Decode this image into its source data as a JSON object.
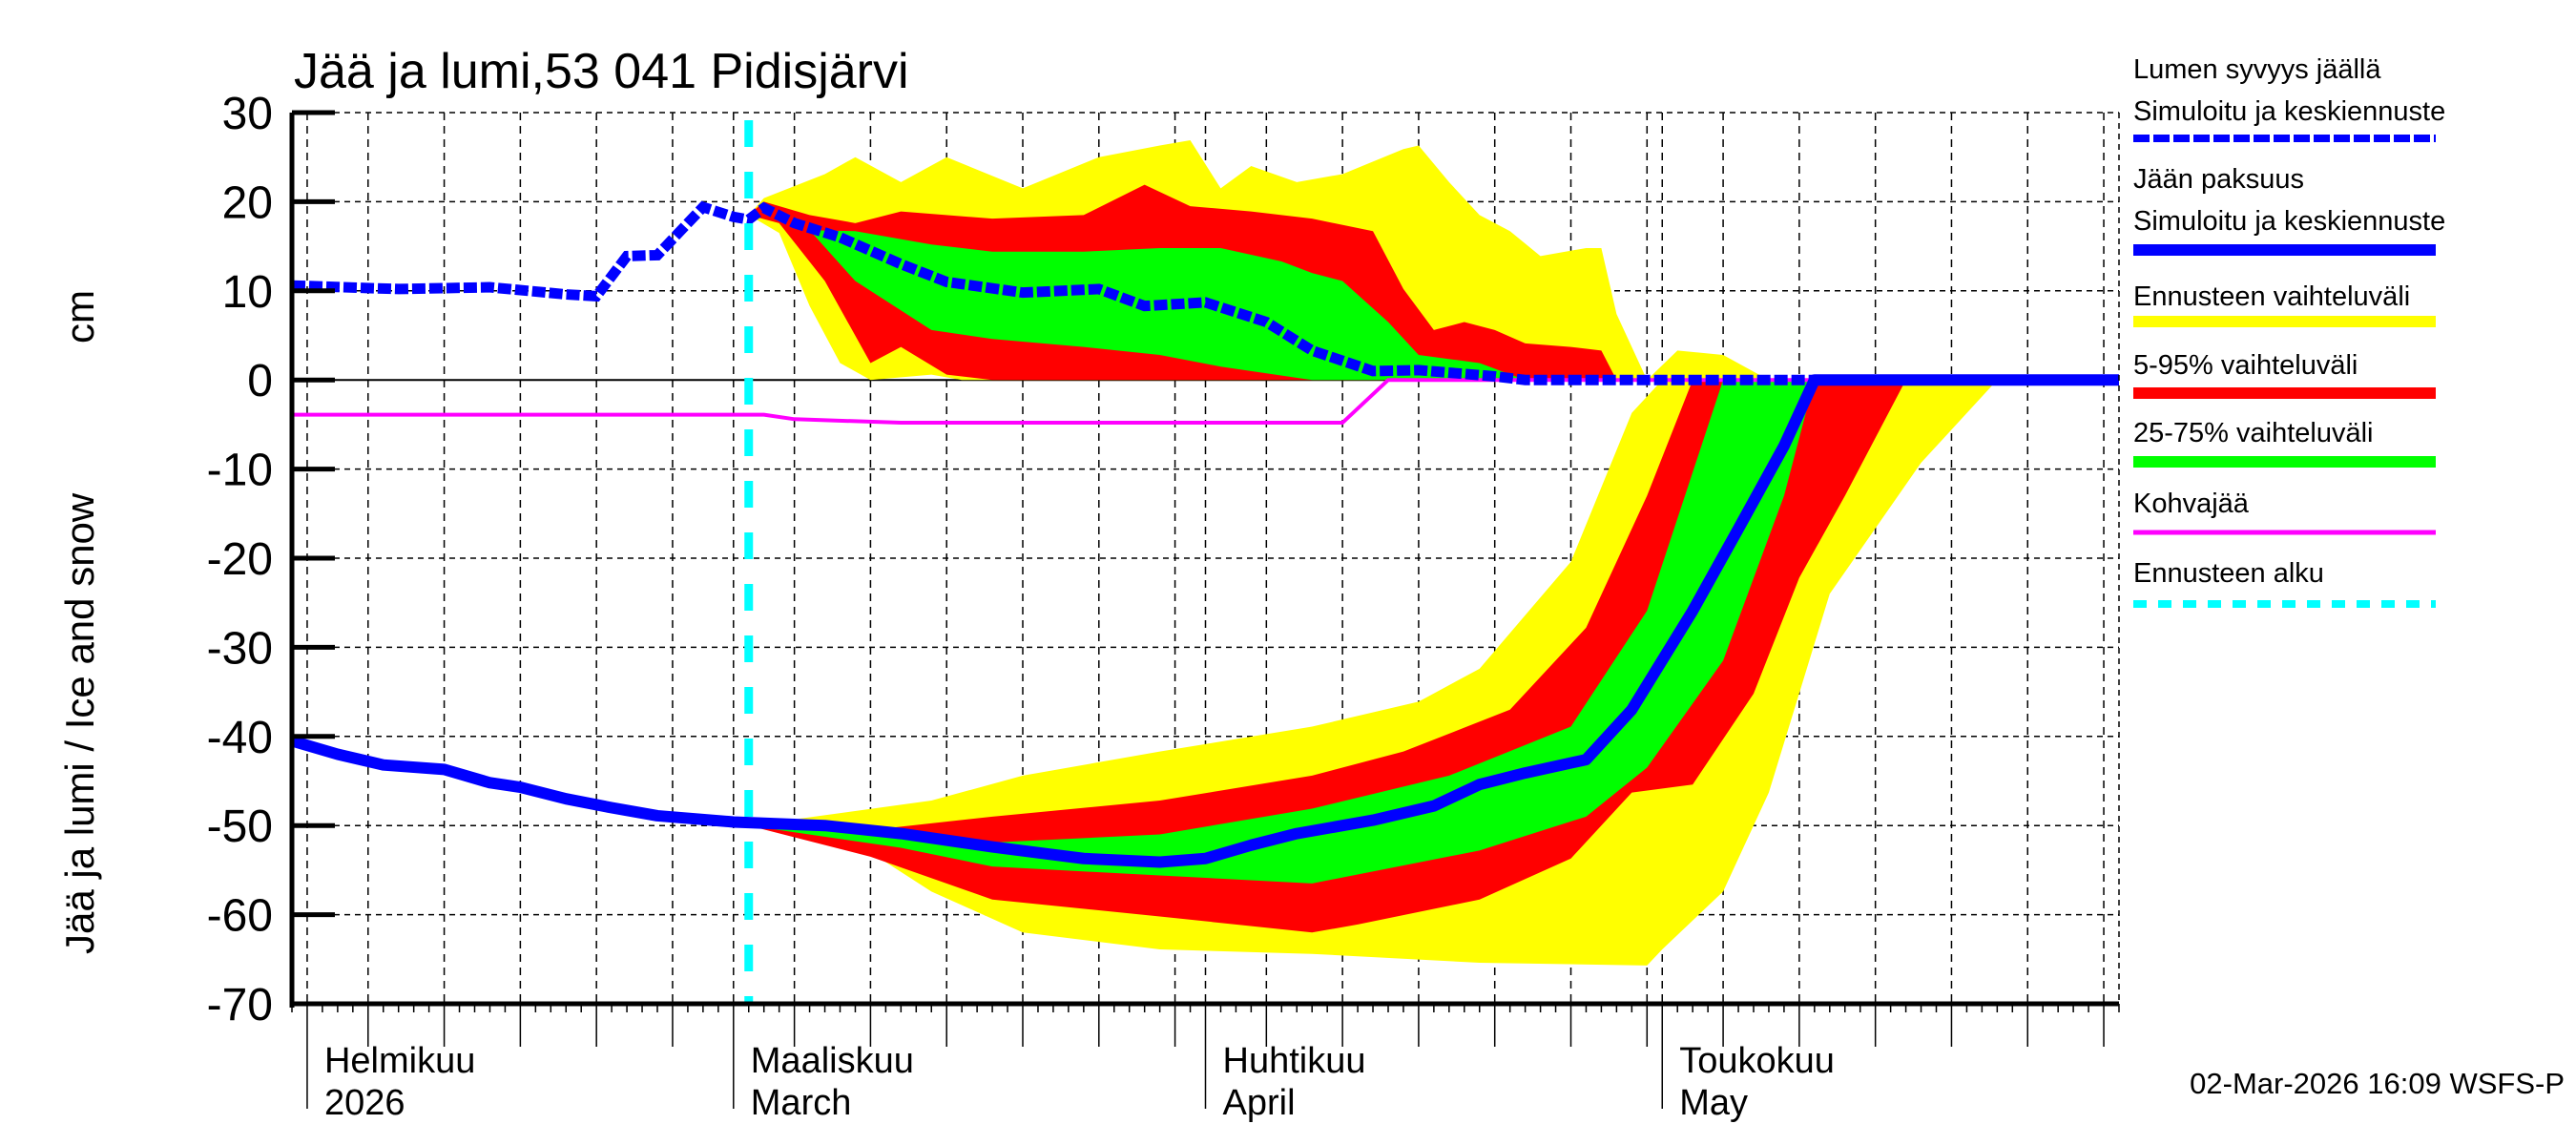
{
  "chart_data": {
    "type": "area",
    "title": "Jää ja lumi,53 041 Pidisjärvi",
    "ylabel": "Jää ja lumi / Ice and snow",
    "yunit": "cm",
    "ylim": [
      -70,
      30
    ],
    "yticks": [
      30,
      20,
      10,
      0,
      -10,
      -20,
      -30,
      -40,
      -50,
      -60,
      -70
    ],
    "xlim": [
      "2026-01-31",
      "2026-05-31"
    ],
    "grid": true,
    "legend_position": "right",
    "month_labels": [
      {
        "date": "2026-02-01",
        "line1": "Helmikuu",
        "line2": "2026"
      },
      {
        "date": "2026-03-01",
        "line1": "Maaliskuu",
        "line2": "March"
      },
      {
        "date": "2026-04-01",
        "line1": "Huhtikuu",
        "line2": "April"
      },
      {
        "date": "2026-05-01",
        "line1": "Toukokuu",
        "line2": "May"
      }
    ],
    "forecast_start": "2026-03-02",
    "footer": "02-Mar-2026 16:09 WSFS-P",
    "colors": {
      "snow": "#0000ff",
      "ice": "#0000ff",
      "range": "#ffff00",
      "p5_95": "#ff0000",
      "p25_75": "#00ff00",
      "slush": "#ff00ff",
      "forecast_start": "#00ffff"
    },
    "legend": [
      {
        "key": "snow",
        "line1": "Lumen syvyys jäällä",
        "line2": "Simuloitu ja keskiennuste",
        "color": "#0000ff",
        "style": "dotted"
      },
      {
        "key": "ice",
        "line1": "Jään paksuus",
        "line2": "Simuloitu ja keskiennuste",
        "color": "#0000ff",
        "style": "solid"
      },
      {
        "key": "range",
        "line1": "Ennusteen vaihteluväli",
        "color": "#ffff00",
        "style": "band"
      },
      {
        "key": "p5_95",
        "line1": "5-95% vaihteluväli",
        "color": "#ff0000",
        "style": "band"
      },
      {
        "key": "p25_75",
        "line1": "25-75% vaihteluväli",
        "color": "#00ff00",
        "style": "band"
      },
      {
        "key": "slush",
        "line1": "Kohvajää",
        "color": "#ff00ff",
        "style": "thin"
      },
      {
        "key": "forecast_start",
        "line1": "Ennusteen alku",
        "color": "#00ffff",
        "style": "dashed"
      }
    ],
    "snow_bands": {
      "range": {
        "upper": [
          [
            "2026-03-02",
            18.5
          ],
          [
            "2026-03-03",
            20.4
          ],
          [
            "2026-03-07",
            23.1
          ],
          [
            "2026-03-09",
            25
          ],
          [
            "2026-03-12",
            22.2
          ],
          [
            "2026-03-15",
            25
          ],
          [
            "2026-03-20",
            21.5
          ],
          [
            "2026-03-25",
            25
          ],
          [
            "2026-03-29",
            26.3
          ],
          [
            "2026-03-31",
            26.9
          ],
          [
            "2026-04-02",
            21.5
          ],
          [
            "2026-04-04",
            24
          ],
          [
            "2026-04-07",
            22.2
          ],
          [
            "2026-04-10",
            23.1
          ],
          [
            "2026-04-14",
            25.9
          ],
          [
            "2026-04-15",
            26.3
          ],
          [
            "2026-04-17",
            22.2
          ],
          [
            "2026-04-19",
            18.5
          ],
          [
            "2026-04-21",
            16.7
          ],
          [
            "2026-04-23",
            13.9
          ],
          [
            "2026-04-26",
            14.8
          ],
          [
            "2026-04-27",
            14.8
          ],
          [
            "2026-04-28",
            7.4
          ],
          [
            "2026-04-30",
            0
          ],
          [
            "2026-05-02",
            3.3
          ],
          [
            "2026-05-05",
            2.8
          ],
          [
            "2026-05-08",
            0
          ]
        ],
        "lower": [
          [
            "2026-03-02",
            18.5
          ],
          [
            "2026-03-04",
            16.5
          ],
          [
            "2026-03-06",
            8.3
          ],
          [
            "2026-03-08",
            1.9
          ],
          [
            "2026-03-10",
            0
          ],
          [
            "2026-03-14",
            0.6
          ],
          [
            "2026-03-16",
            0
          ]
        ]
      },
      "p5_95": {
        "upper": [
          [
            "2026-03-02",
            18.5
          ],
          [
            "2026-03-03",
            20
          ],
          [
            "2026-03-06",
            18.5
          ],
          [
            "2026-03-09",
            17.6
          ],
          [
            "2026-03-12",
            18.9
          ],
          [
            "2026-03-18",
            18.1
          ],
          [
            "2026-03-24",
            18.5
          ],
          [
            "2026-03-28",
            21.9
          ],
          [
            "2026-03-31",
            19.5
          ],
          [
            "2026-04-04",
            18.9
          ],
          [
            "2026-04-08",
            18.1
          ],
          [
            "2026-04-12",
            16.7
          ],
          [
            "2026-04-14",
            10.2
          ],
          [
            "2026-04-16",
            5.6
          ],
          [
            "2026-04-18",
            6.5
          ],
          [
            "2026-04-20",
            5.6
          ],
          [
            "2026-04-22",
            4.1
          ],
          [
            "2026-04-25",
            3.7
          ],
          [
            "2026-04-27",
            3.3
          ],
          [
            "2026-04-28",
            0
          ]
        ],
        "lower": [
          [
            "2026-03-02",
            18.5
          ],
          [
            "2026-03-04",
            17.6
          ],
          [
            "2026-03-07",
            11.1
          ],
          [
            "2026-03-10",
            1.9
          ],
          [
            "2026-03-12",
            3.7
          ],
          [
            "2026-03-15",
            0.6
          ],
          [
            "2026-03-18",
            0
          ]
        ]
      },
      "p25_75": {
        "upper": [
          [
            "2026-03-02",
            18.5
          ],
          [
            "2026-03-06",
            16.8
          ],
          [
            "2026-03-09",
            16.7
          ],
          [
            "2026-03-14",
            15.2
          ],
          [
            "2026-03-18",
            14.4
          ],
          [
            "2026-03-24",
            14.4
          ],
          [
            "2026-03-29",
            14.8
          ],
          [
            "2026-04-02",
            14.8
          ],
          [
            "2026-04-06",
            13.3
          ],
          [
            "2026-04-08",
            12
          ],
          [
            "2026-04-10",
            11.1
          ],
          [
            "2026-04-13",
            6.5
          ],
          [
            "2026-04-15",
            2.8
          ],
          [
            "2026-04-19",
            1.9
          ],
          [
            "2026-04-22",
            0
          ]
        ],
        "lower": [
          [
            "2026-03-02",
            18.5
          ],
          [
            "2026-03-06",
            16.8
          ],
          [
            "2026-03-09",
            11.1
          ],
          [
            "2026-03-14",
            5.6
          ],
          [
            "2026-03-18",
            4.6
          ],
          [
            "2026-03-24",
            3.7
          ],
          [
            "2026-03-29",
            2.8
          ],
          [
            "2026-04-02",
            1.5
          ],
          [
            "2026-04-08",
            0
          ]
        ]
      }
    },
    "ice_bands": {
      "range": {
        "upper": [
          [
            "2026-03-02",
            -50
          ],
          [
            "2026-03-14",
            -47.2
          ],
          [
            "2026-03-20",
            -44.4
          ],
          [
            "2026-03-29",
            -41.7
          ],
          [
            "2026-04-08",
            -38.9
          ],
          [
            "2026-04-15",
            -36.1
          ],
          [
            "2026-04-19",
            -32.4
          ],
          [
            "2026-04-25",
            -20.4
          ],
          [
            "2026-04-29",
            -3.7
          ],
          [
            "2026-05-01",
            0
          ]
        ],
        "lower": [
          [
            "2026-03-02",
            -50
          ],
          [
            "2026-03-10",
            -53
          ],
          [
            "2026-03-14",
            -57.4
          ],
          [
            "2026-03-20",
            -62
          ],
          [
            "2026-03-29",
            -63.9
          ],
          [
            "2026-04-08",
            -64.4
          ],
          [
            "2026-04-19",
            -65.4
          ],
          [
            "2026-04-30",
            -65.7
          ],
          [
            "2026-05-01",
            -63.9
          ],
          [
            "2026-05-05",
            -57.4
          ],
          [
            "2026-05-08",
            -46.3
          ],
          [
            "2026-05-12",
            -24
          ],
          [
            "2026-05-18",
            -9.3
          ],
          [
            "2026-05-23",
            0
          ]
        ]
      },
      "p5_95": {
        "upper": [
          [
            "2026-03-02",
            -50
          ],
          [
            "2026-03-10",
            -50.5
          ],
          [
            "2026-03-18",
            -49
          ],
          [
            "2026-03-29",
            -47.2
          ],
          [
            "2026-04-08",
            -44.4
          ],
          [
            "2026-04-14",
            -41.7
          ],
          [
            "2026-04-21",
            -37
          ],
          [
            "2026-04-26",
            -27.8
          ],
          [
            "2026-04-30",
            -13
          ],
          [
            "2026-05-03",
            0
          ]
        ],
        "lower": [
          [
            "2026-03-02",
            -50
          ],
          [
            "2026-03-10",
            -53.5
          ],
          [
            "2026-03-18",
            -58.3
          ],
          [
            "2026-03-29",
            -60.2
          ],
          [
            "2026-04-08",
            -62
          ],
          [
            "2026-04-11",
            -61.1
          ],
          [
            "2026-04-19",
            -58.3
          ],
          [
            "2026-04-25",
            -53.7
          ],
          [
            "2026-04-29",
            -46.3
          ],
          [
            "2026-05-03",
            -45.4
          ],
          [
            "2026-05-07",
            -35.2
          ],
          [
            "2026-05-10",
            -22.2
          ],
          [
            "2026-05-13",
            -13
          ],
          [
            "2026-05-17",
            0
          ]
        ]
      },
      "p25_75": {
        "upper": [
          [
            "2026-03-02",
            -50
          ],
          [
            "2026-03-12",
            -51
          ],
          [
            "2026-03-18",
            -51.9
          ],
          [
            "2026-03-29",
            -51
          ],
          [
            "2026-04-08",
            -48.1
          ],
          [
            "2026-04-17",
            -44.4
          ],
          [
            "2026-04-25",
            -38.9
          ],
          [
            "2026-04-30",
            -25.9
          ],
          [
            "2026-05-05",
            0
          ]
        ],
        "lower": [
          [
            "2026-03-02",
            -50
          ],
          [
            "2026-03-12",
            -52.5
          ],
          [
            "2026-03-18",
            -54.6
          ],
          [
            "2026-03-29",
            -55.6
          ],
          [
            "2026-04-08",
            -56.5
          ],
          [
            "2026-04-19",
            -52.8
          ],
          [
            "2026-04-26",
            -49
          ],
          [
            "2026-04-30",
            -43.5
          ],
          [
            "2026-05-05",
            -31.5
          ],
          [
            "2026-05-09",
            -13
          ],
          [
            "2026-05-11",
            0
          ]
        ]
      }
    },
    "snow_depth": [
      [
        "2026-01-31",
        10.6
      ],
      [
        "2026-02-07",
        10.2
      ],
      [
        "2026-02-13",
        10.4
      ],
      [
        "2026-02-18",
        9.6
      ],
      [
        "2026-02-20",
        9.4
      ],
      [
        "2026-02-22",
        13.9
      ],
      [
        "2026-02-24",
        14
      ],
      [
        "2026-02-27",
        19.4
      ],
      [
        "2026-03-01",
        18.3
      ],
      [
        "2026-03-02",
        18
      ],
      [
        "2026-03-03",
        19.3
      ],
      [
        "2026-03-05",
        17.6
      ],
      [
        "2026-03-08",
        16
      ],
      [
        "2026-03-12",
        13
      ],
      [
        "2026-03-15",
        11
      ],
      [
        "2026-03-20",
        9.8
      ],
      [
        "2026-03-25",
        10.2
      ],
      [
        "2026-03-28",
        8.3
      ],
      [
        "2026-04-01",
        8.7
      ],
      [
        "2026-04-05",
        6.5
      ],
      [
        "2026-04-08",
        3.3
      ],
      [
        "2026-04-12",
        1
      ],
      [
        "2026-04-15",
        1.1
      ],
      [
        "2026-04-20",
        0.4
      ],
      [
        "2026-04-22",
        0
      ],
      [
        "2026-05-31",
        0
      ]
    ],
    "ice_thickness": [
      [
        "2026-01-31",
        -40.5
      ],
      [
        "2026-02-03",
        -42
      ],
      [
        "2026-02-06",
        -43.2
      ],
      [
        "2026-02-10",
        -43.7
      ],
      [
        "2026-02-13",
        -45.2
      ],
      [
        "2026-02-15",
        -45.7
      ],
      [
        "2026-02-18",
        -47
      ],
      [
        "2026-02-21",
        -48
      ],
      [
        "2026-02-24",
        -48.9
      ],
      [
        "2026-03-01",
        -49.6
      ],
      [
        "2026-03-07",
        -50
      ],
      [
        "2026-03-12",
        -50.9
      ],
      [
        "2026-03-18",
        -52.4
      ],
      [
        "2026-03-24",
        -53.7
      ],
      [
        "2026-03-29",
        -54.1
      ],
      [
        "2026-04-01",
        -53.7
      ],
      [
        "2026-04-04",
        -52.2
      ],
      [
        "2026-04-07",
        -50.9
      ],
      [
        "2026-04-12",
        -49.4
      ],
      [
        "2026-04-16",
        -47.8
      ],
      [
        "2026-04-19",
        -45.4
      ],
      [
        "2026-04-22",
        -44.1
      ],
      [
        "2026-04-26",
        -42.6
      ],
      [
        "2026-04-29",
        -37
      ],
      [
        "2026-05-03",
        -25.9
      ],
      [
        "2026-05-06",
        -16.7
      ],
      [
        "2026-05-09",
        -7.4
      ],
      [
        "2026-05-11",
        0
      ],
      [
        "2026-05-31",
        0
      ]
    ],
    "slush_ice": [
      [
        "2026-01-31",
        -3.9
      ],
      [
        "2026-03-03",
        -3.9
      ],
      [
        "2026-03-05",
        -4.4
      ],
      [
        "2026-03-12",
        -4.8
      ],
      [
        "2026-04-10",
        -4.8
      ],
      [
        "2026-04-13",
        0
      ],
      [
        "2026-05-31",
        0
      ]
    ]
  }
}
